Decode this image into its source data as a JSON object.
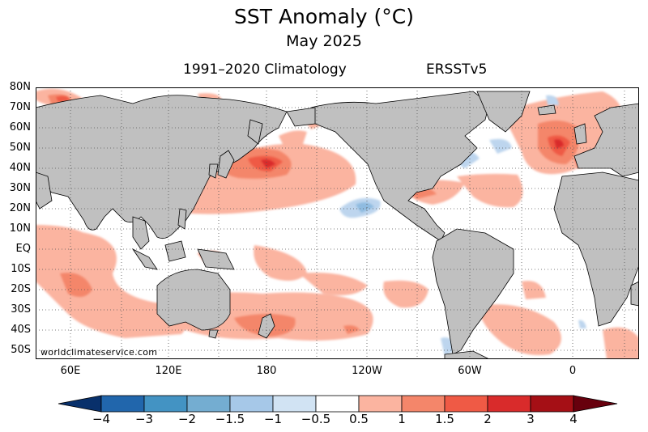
{
  "header": {
    "title": "SST Anomaly (°C)",
    "date": "May 2025",
    "climatology": "1991–2020 Climatology",
    "dataset": "ERSSTv5"
  },
  "credit": "worldclimateservice.com",
  "axes": {
    "lat_labels": [
      "80N",
      "70N",
      "60N",
      "50N",
      "40N",
      "30N",
      "20N",
      "10N",
      "EQ",
      "10S",
      "20S",
      "30S",
      "40S",
      "50S"
    ],
    "lon_labels": [
      "60E",
      "120E",
      "180",
      "120W",
      "60W",
      "0"
    ]
  },
  "colorbar": {
    "labels": [
      "−4",
      "−3",
      "−2",
      "−1.5",
      "−1",
      "−0.5",
      "0.5",
      "1",
      "1.5",
      "2",
      "3",
      "4"
    ],
    "colors": [
      "#08306b",
      "#2166ac",
      "#4393c3",
      "#74add1",
      "#a6c8e8",
      "#d1e3f3",
      "#ffffff",
      "#fbb4a0",
      "#f4866a",
      "#ef5a45",
      "#d92b2b",
      "#a50f15",
      "#67000d"
    ]
  },
  "colors": {
    "land": "#c0c0c0",
    "ocean": "#ffffff",
    "anom_weak": "#fbb4a0",
    "anom_mod": "#f4866a",
    "anom_strong": "#ef5a45",
    "anom_very": "#d92b2b",
    "cold_weak": "#bdd5ee",
    "cold_mod": "#8fbbe0"
  }
}
